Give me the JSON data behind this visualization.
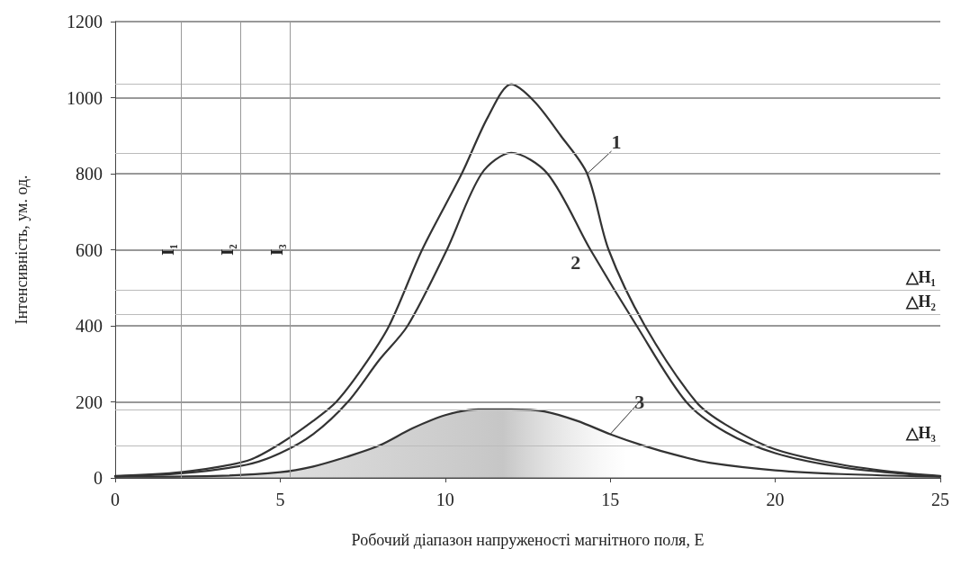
{
  "chart_data": {
    "type": "line",
    "xlabel": "Робочий діапазон напруженості магнітного поля, Е",
    "ylabel": "Інтенсивність, ум. од.",
    "xlim": [
      0,
      25
    ],
    "xticks": [
      0,
      5,
      10,
      15,
      20,
      25
    ],
    "ylim": [
      0,
      1200
    ],
    "yticks": [
      0,
      200,
      400,
      600,
      800,
      1000,
      1200
    ],
    "grid": "y",
    "legend": false,
    "marker": "none",
    "line_style": "solid",
    "series": [
      {
        "name": "1",
        "color": "#333333",
        "x": [
          0,
          2,
          4,
          5,
          6,
          6.7,
          7.5,
          8.3,
          9.3,
          10.5,
          11.3,
          12,
          12.7,
          13.5,
          14.3,
          14.95,
          16.05,
          17.6,
          18.5,
          20,
          22,
          24,
          25
        ],
        "values": [
          5,
          15,
          45,
          90,
          150,
          200,
          290,
          400,
          600,
          800,
          950,
          1035,
          990,
          900,
          800,
          600,
          400,
          200,
          140,
          75,
          35,
          12,
          5
        ]
      },
      {
        "name": "2",
        "color": "#333333",
        "x": [
          0,
          2,
          4,
          5,
          6,
          7.05,
          8,
          8.86,
          10.05,
          11.1,
          12,
          13.1,
          14.4,
          15.8,
          17.3,
          18.5,
          20,
          22,
          24,
          25
        ],
        "values": [
          4,
          12,
          35,
          65,
          115,
          200,
          310,
          400,
          600,
          800,
          855,
          800,
          600,
          400,
          200,
          120,
          65,
          28,
          10,
          4
        ]
      },
      {
        "name": "3",
        "type": "area",
        "color": "#333333",
        "x": [
          0,
          3,
          5,
          6,
          7,
          8,
          9,
          10,
          11,
          12,
          13,
          14,
          15,
          16,
          17,
          18,
          20,
          22,
          25
        ],
        "values": [
          3,
          5,
          15,
          30,
          55,
          85,
          130,
          165,
          180,
          180,
          175,
          150,
          115,
          85,
          60,
          40,
          20,
          10,
          3
        ]
      }
    ],
    "ref_lines": [
      {
        "axis": "y",
        "value": 1035,
        "label": null,
        "color": "#bbbbbb"
      },
      {
        "axis": "y",
        "value": 855,
        "label": null,
        "color": "#bbbbbb"
      },
      {
        "axis": "y",
        "value": 180,
        "label": null,
        "color": "#bbbbbb"
      },
      {
        "axis": "y",
        "value": 495,
        "label": "△H₁",
        "color": "#bbbbbb"
      },
      {
        "axis": "y",
        "value": 431,
        "label": "△H₂",
        "color": "#bbbbbb"
      },
      {
        "axis": "y",
        "value": 85,
        "label": "△H₃",
        "color": "#bbbbbb"
      },
      {
        "axis": "x",
        "value": 2,
        "label": "I₁",
        "color": "#999999"
      },
      {
        "axis": "x",
        "value": 3.8,
        "label": "I₂",
        "color": "#999999"
      },
      {
        "axis": "x",
        "value": 5.3,
        "label": "I₃",
        "color": "#999999"
      }
    ]
  }
}
